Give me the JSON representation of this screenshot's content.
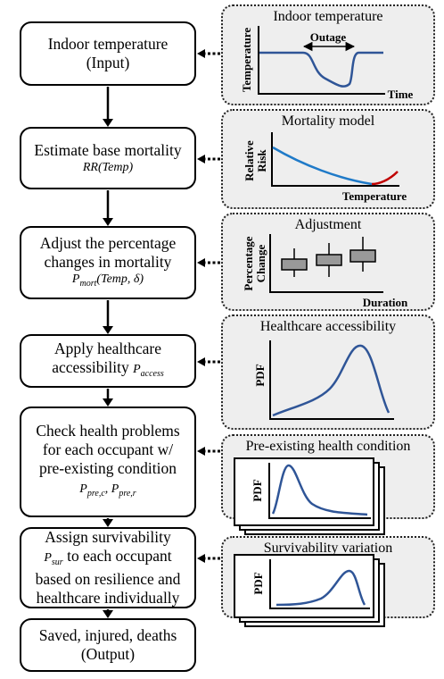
{
  "flow": {
    "indoor_temperature": {
      "line1": "Indoor temperature",
      "line2": "(Input)"
    },
    "base_mortality": {
      "line1": "Estimate base mortality",
      "math": "RR(Temp)"
    },
    "adjust": {
      "line1": "Adjust the percentage",
      "line2": "changes in mortality",
      "math": "P_mort(Temp, δ)"
    },
    "healthcare": {
      "line1": "Apply healthcare",
      "line2": "accessibility P_access"
    },
    "check_health": {
      "line1": "Check health problems",
      "line2": "for each occupant w/",
      "line3": "pre-existing condition",
      "math": "P_pre,c, P_pre,r"
    },
    "survivability": {
      "line1": "Assign survivability",
      "line2": "P_sur to each occupant",
      "line3": "based on resilience and",
      "line4": "healthcare individually"
    },
    "output": {
      "line1": "Saved, injured, deaths",
      "line2": "(Output)"
    }
  },
  "panels": {
    "indoor_temperature": {
      "title": "Indoor temperature",
      "ylabel": "Temperature",
      "xlabel": "Time",
      "annotation": "Outage"
    },
    "mortality_model": {
      "title": "Mortality model",
      "ylabel_line1": "Relative",
      "ylabel_line2": "Risk",
      "xlabel": "Temperature"
    },
    "adjustment": {
      "title": "Adjustment",
      "ylabel_line1": "Percentage",
      "ylabel_line2": "Change",
      "xlabel": "Duration"
    },
    "healthcare_accessibility": {
      "title": "Healthcare accessibility",
      "ylabel": "PDF"
    },
    "pre_existing": {
      "title": "Pre-existing health condition",
      "ylabel": "PDF"
    },
    "survivability_variation": {
      "title": "Survivability variation",
      "ylabel": "PDF"
    }
  },
  "colors": {
    "curve_blue": "#2F5597",
    "curve_lightblue": "#1F7AC8",
    "curve_red": "#C00000",
    "box_gray": "#999999",
    "panel_bg": "#eeeeee"
  }
}
